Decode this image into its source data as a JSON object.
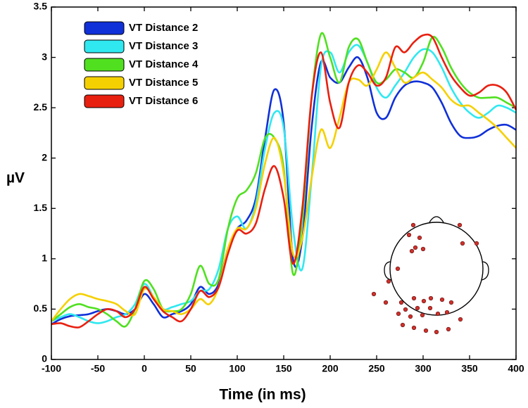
{
  "chart_data": {
    "type": "line",
    "xlabel": "Time (in ms)",
    "ylabel": "µV",
    "x": [
      -100,
      -90,
      -80,
      -70,
      -60,
      -50,
      -40,
      -30,
      -20,
      -10,
      0,
      10,
      20,
      30,
      40,
      50,
      60,
      70,
      80,
      90,
      100,
      110,
      120,
      130,
      140,
      150,
      160,
      170,
      180,
      190,
      200,
      210,
      220,
      230,
      240,
      250,
      260,
      270,
      280,
      290,
      300,
      310,
      320,
      330,
      340,
      350,
      360,
      370,
      380,
      390,
      400
    ],
    "xlim": [
      -100,
      400
    ],
    "xticks": [
      -100,
      -50,
      0,
      50,
      100,
      150,
      200,
      250,
      300,
      350,
      400
    ],
    "ylim": [
      0,
      3.5
    ],
    "yticks": [
      0,
      0.5,
      1,
      1.5,
      2,
      2.5,
      3,
      3.5
    ],
    "legend": "upper left",
    "series": [
      {
        "name": "VT Distance 2",
        "color": "#1030d8",
        "values": [
          0.35,
          0.4,
          0.43,
          0.44,
          0.45,
          0.48,
          0.5,
          0.48,
          0.45,
          0.5,
          0.65,
          0.55,
          0.42,
          0.45,
          0.48,
          0.55,
          0.72,
          0.65,
          0.75,
          1.1,
          1.3,
          1.38,
          1.6,
          2.2,
          2.68,
          2.35,
          1.0,
          1.2,
          2.3,
          2.95,
          2.8,
          2.75,
          2.9,
          3.0,
          2.8,
          2.45,
          2.4,
          2.6,
          2.72,
          2.76,
          2.75,
          2.7,
          2.55,
          2.35,
          2.22,
          2.2,
          2.22,
          2.28,
          2.32,
          2.33,
          2.28
        ]
      },
      {
        "name": "VT Distance 3",
        "color": "#30e8f0",
        "values": [
          0.38,
          0.42,
          0.45,
          0.42,
          0.38,
          0.36,
          0.38,
          0.42,
          0.45,
          0.55,
          0.75,
          0.62,
          0.5,
          0.52,
          0.55,
          0.58,
          0.68,
          0.7,
          0.9,
          1.3,
          1.42,
          1.3,
          1.55,
          2.1,
          2.45,
          2.3,
          1.3,
          0.9,
          1.8,
          2.9,
          3.05,
          2.85,
          3.05,
          3.12,
          2.95,
          2.7,
          2.6,
          2.72,
          2.85,
          3.0,
          3.08,
          3.05,
          2.9,
          2.7,
          2.55,
          2.45,
          2.4,
          2.45,
          2.52,
          2.5,
          2.45
        ]
      },
      {
        "name": "VT Distance 4",
        "color": "#50e020",
        "values": [
          0.38,
          0.45,
          0.52,
          0.55,
          0.52,
          0.5,
          0.45,
          0.38,
          0.33,
          0.5,
          0.78,
          0.7,
          0.5,
          0.48,
          0.5,
          0.65,
          0.93,
          0.75,
          0.8,
          1.3,
          1.6,
          1.68,
          1.85,
          2.2,
          2.2,
          1.9,
          0.85,
          1.4,
          2.6,
          3.23,
          3.0,
          2.75,
          3.1,
          3.18,
          2.95,
          2.75,
          2.78,
          2.88,
          2.85,
          2.8,
          2.95,
          3.2,
          3.1,
          2.9,
          2.75,
          2.65,
          2.6,
          2.6,
          2.6,
          2.55,
          2.5
        ]
      },
      {
        "name": "VT Distance 5",
        "color": "#f5d000",
        "values": [
          0.38,
          0.5,
          0.6,
          0.65,
          0.63,
          0.6,
          0.58,
          0.55,
          0.48,
          0.45,
          0.7,
          0.62,
          0.5,
          0.48,
          0.45,
          0.5,
          0.6,
          0.55,
          0.72,
          1.1,
          1.3,
          1.3,
          1.5,
          1.95,
          2.2,
          1.85,
          1.05,
          1.2,
          1.8,
          2.28,
          2.1,
          2.4,
          2.75,
          2.78,
          2.72,
          2.88,
          3.05,
          2.9,
          2.75,
          2.8,
          2.85,
          2.78,
          2.7,
          2.58,
          2.52,
          2.52,
          2.45,
          2.38,
          2.3,
          2.2,
          2.1
        ]
      },
      {
        "name": "VT Distance 6",
        "color": "#e82010",
        "values": [
          0.35,
          0.36,
          0.33,
          0.32,
          0.38,
          0.45,
          0.5,
          0.48,
          0.42,
          0.5,
          0.72,
          0.6,
          0.48,
          0.42,
          0.38,
          0.5,
          0.68,
          0.62,
          0.72,
          1.05,
          1.28,
          1.25,
          1.35,
          1.7,
          1.92,
          1.6,
          0.95,
          1.5,
          2.6,
          3.05,
          2.55,
          2.3,
          2.75,
          2.92,
          2.85,
          2.72,
          2.8,
          3.1,
          3.05,
          3.15,
          3.22,
          3.2,
          3.0,
          2.82,
          2.7,
          2.62,
          2.65,
          2.72,
          2.72,
          2.65,
          2.48
        ]
      }
    ]
  }
}
